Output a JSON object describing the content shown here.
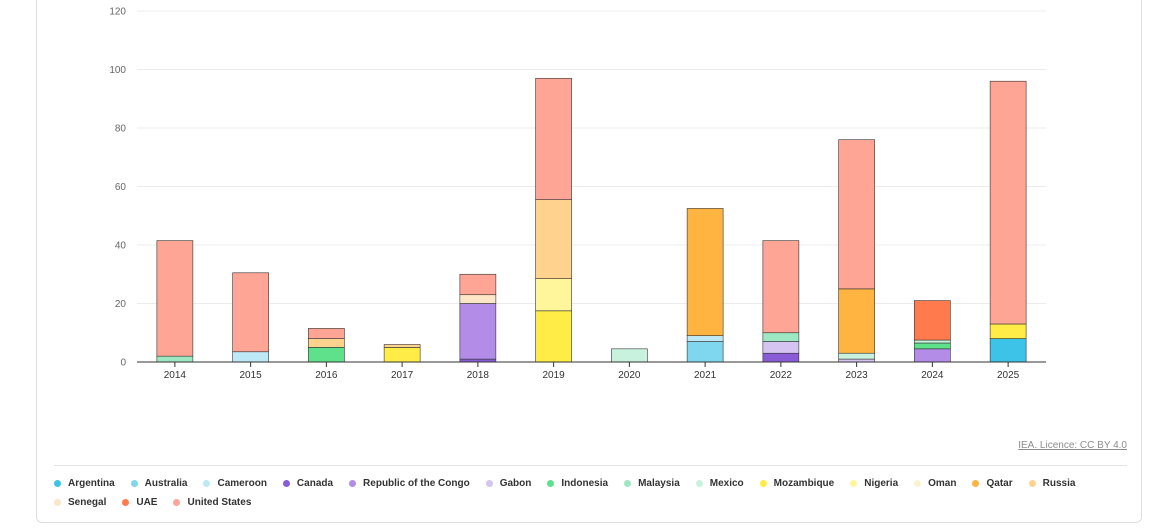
{
  "chart_data": {
    "type": "bar",
    "stacked": true,
    "title": "",
    "xlabel": "",
    "ylabel": "",
    "ylim": [
      0,
      120
    ],
    "yticks": [
      0,
      20,
      40,
      60,
      80,
      100,
      120
    ],
    "categories": [
      "2014",
      "2015",
      "2016",
      "2017",
      "2018",
      "2019",
      "2020",
      "2021",
      "2022",
      "2023",
      "2024",
      "2025"
    ],
    "grid": true,
    "legend_position": "bottom",
    "series": [
      {
        "name": "Argentina",
        "color": "#3ec3e8",
        "values": [
          0,
          0,
          0,
          0,
          0,
          0,
          0,
          0,
          0,
          0,
          0,
          8
        ]
      },
      {
        "name": "Australia",
        "color": "#7fd6ef",
        "values": [
          0,
          0,
          0,
          0,
          0,
          0,
          0,
          7,
          0,
          0,
          0,
          0
        ]
      },
      {
        "name": "Cameroon",
        "color": "#bde8f5",
        "values": [
          0,
          3.5,
          0,
          0,
          0,
          0,
          0,
          2,
          0,
          0,
          0,
          0
        ]
      },
      {
        "name": "Canada",
        "color": "#8a5bd6",
        "values": [
          0,
          0,
          0,
          0,
          1,
          0,
          0,
          0,
          3,
          0,
          0,
          0
        ]
      },
      {
        "name": "Republic of the Congo",
        "color": "#b38ce8",
        "values": [
          0,
          0,
          0,
          0,
          19,
          0,
          0,
          0,
          0,
          0,
          4.5,
          0
        ]
      },
      {
        "name": "Gabon",
        "color": "#d5c4f2",
        "values": [
          0,
          0,
          0,
          0,
          0,
          0,
          0,
          0,
          4,
          1,
          0,
          0
        ]
      },
      {
        "name": "Indonesia",
        "color": "#5fe08a",
        "values": [
          0,
          0,
          5,
          0,
          0,
          0,
          0,
          0,
          0,
          0,
          2,
          0
        ]
      },
      {
        "name": "Malaysia",
        "color": "#9de8c2",
        "values": [
          2,
          0,
          0,
          0,
          0,
          0,
          0,
          0,
          3,
          0,
          0,
          0
        ]
      },
      {
        "name": "Mexico",
        "color": "#c8f2de",
        "values": [
          0,
          0,
          0,
          0,
          0,
          0,
          4.5,
          0,
          0,
          2,
          1,
          0
        ]
      },
      {
        "name": "Mozambique",
        "color": "#ffec47",
        "values": [
          0,
          0,
          0,
          5,
          0,
          17.5,
          0,
          0,
          0,
          0,
          0,
          5
        ]
      },
      {
        "name": "Nigeria",
        "color": "#fff59a",
        "values": [
          0,
          0,
          0,
          0,
          0,
          11,
          0,
          0,
          0,
          0,
          0,
          0
        ]
      },
      {
        "name": "Oman",
        "color": "#fbf3cf",
        "values": [
          0,
          0,
          0,
          0,
          0,
          0,
          0,
          0,
          0,
          0,
          0,
          0
        ]
      },
      {
        "name": "Qatar",
        "color": "#ffb340",
        "values": [
          0,
          0,
          0,
          0,
          0,
          0,
          0,
          43.5,
          0,
          22,
          0,
          0
        ]
      },
      {
        "name": "Russia",
        "color": "#ffd28e",
        "values": [
          0,
          0,
          3,
          1,
          0,
          27,
          0,
          0,
          0,
          0,
          0,
          0
        ]
      },
      {
        "name": "Senegal",
        "color": "#fde6c8",
        "values": [
          0,
          0,
          0,
          0,
          3,
          0,
          0,
          0,
          0,
          0,
          0,
          0
        ]
      },
      {
        "name": "UAE",
        "color": "#ff7a4d",
        "values": [
          0,
          0,
          0,
          0,
          0,
          0,
          0,
          0,
          0,
          0,
          13.5,
          0
        ]
      },
      {
        "name": "United States",
        "color": "#ffa595",
        "values": [
          39.5,
          27,
          3.5,
          0,
          7,
          41.5,
          0,
          0,
          31.5,
          51,
          0,
          83
        ]
      }
    ]
  },
  "credit": "IEA. Licence: CC BY 4.0"
}
